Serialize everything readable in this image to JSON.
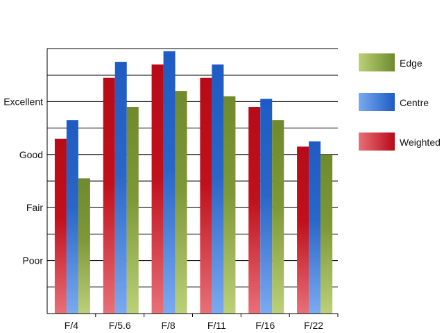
{
  "chart_data": {
    "type": "bar",
    "title": "",
    "xlabel": "",
    "ylabel": "",
    "categories": [
      "F/4",
      "F/5.6",
      "F/8",
      "F/11",
      "F/16",
      "F/22"
    ],
    "series": [
      {
        "name": "Weighted",
        "values": [
          6.6,
          8.9,
          9.4,
          8.9,
          7.8,
          6.3
        ],
        "color": "#c0101c"
      },
      {
        "name": "Centre",
        "values": [
          7.3,
          9.5,
          9.9,
          9.4,
          8.1,
          6.5
        ],
        "color": "#2a66c8"
      },
      {
        "name": "Edge",
        "values": [
          5.1,
          7.8,
          8.4,
          8.2,
          7.3,
          6.0
        ],
        "color": "#7e9838"
      }
    ],
    "ylim": [
      0,
      10
    ],
    "y_tick_labels": [
      {
        "value": 2,
        "label": "Poor"
      },
      {
        "value": 4,
        "label": "Fair"
      },
      {
        "value": 6,
        "label": "Good"
      },
      {
        "value": 8,
        "label": "Excellent"
      }
    ],
    "grid": true,
    "legend": {
      "placement": "right",
      "entries": [
        "Edge",
        "Centre",
        "Weighted"
      ]
    }
  }
}
